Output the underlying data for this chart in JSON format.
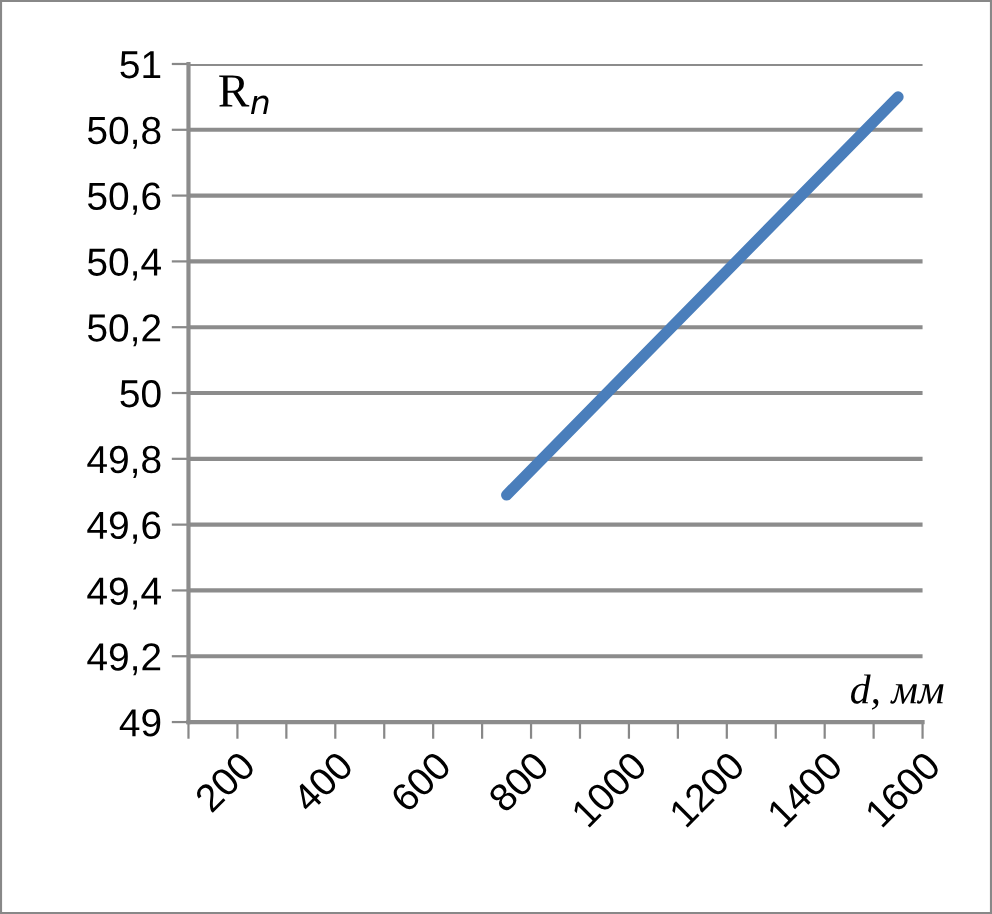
{
  "chart_data": {
    "type": "line",
    "xlabel": "d, мм",
    "ylabel": "R$_{n}$",
    "series": [
      {
        "color": "#4a7ebb",
        "x": [
          750,
          1550
        ],
        "values": [
          49.69,
          50.9
        ]
      }
    ],
    "xlim": [
      100,
      1600
    ],
    "xticks": [
      {
        "value": 100,
        "label": null
      },
      200,
      {
        "value": 300,
        "label": null
      },
      400,
      {
        "value": 500,
        "label": null
      },
      600,
      {
        "value": 700,
        "label": null
      },
      800,
      {
        "value": 900,
        "label": null
      },
      1000,
      {
        "value": 1100,
        "label": null
      },
      1200,
      {
        "value": 1300,
        "label": null
      },
      1400,
      {
        "value": 1500,
        "label": null
      },
      1600
    ],
    "ylim": [
      49,
      51
    ],
    "yticks": [
      49,
      {
        "value": 49.2,
        "label": "49,2"
      },
      {
        "value": 49.4,
        "label": "49,4"
      },
      {
        "value": 49.6,
        "label": "49,6"
      },
      {
        "value": 49.8,
        "label": "49,8"
      },
      50,
      {
        "value": 50.2,
        "label": "50,2"
      },
      {
        "value": 50.4,
        "label": "50,4"
      },
      {
        "value": 50.6,
        "label": "50,6"
      },
      {
        "value": 50.8,
        "label": "50,8"
      },
      51
    ],
    "grid": "y",
    "legend": false,
    "marker": "none",
    "line_style": "solid"
  }
}
